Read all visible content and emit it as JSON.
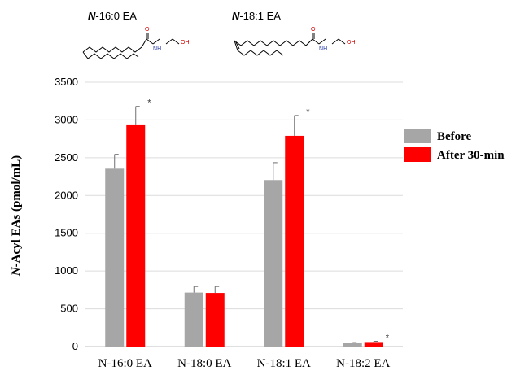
{
  "chart_data": {
    "type": "bar",
    "title": "",
    "xlabel": "",
    "ylabel_prefix": "N",
    "ylabel_rest": "-Acyl EAs (pmol/mL)",
    "ylim": [
      0,
      3500
    ],
    "yticks": [
      "0",
      "500",
      "1000",
      "1500",
      "2000",
      "2500",
      "3000",
      "3500"
    ],
    "grid": true,
    "legend_position": "right",
    "categories": [
      "N-16:0 EA",
      "N-18:0 EA",
      "N-18:1 EA",
      "N-18:2 EA"
    ],
    "series": [
      {
        "name": "Before",
        "color": "#a6a6a6",
        "values": [
          2355,
          715,
          2205,
          45
        ],
        "errors": [
          190,
          80,
          230,
          8
        ],
        "significance": [
          "",
          "",
          "",
          ""
        ]
      },
      {
        "name": "After 30-min",
        "color": "#ff0000",
        "values": [
          2930,
          710,
          2790,
          60
        ],
        "errors": [
          250,
          85,
          270,
          10
        ],
        "significance": [
          "*",
          "",
          "*",
          "*"
        ]
      }
    ]
  },
  "structures": [
    {
      "title_prefix": "N",
      "title_rest": "-16:0 EA",
      "n_label": "N",
      "h_label": "H",
      "o_label": "O",
      "oh_label": "OH"
    },
    {
      "title_prefix": "N",
      "title_rest": "-18:1 EA",
      "n_label": "N",
      "h_label": "H",
      "o_label": "O",
      "oh_label": "OH"
    }
  ]
}
